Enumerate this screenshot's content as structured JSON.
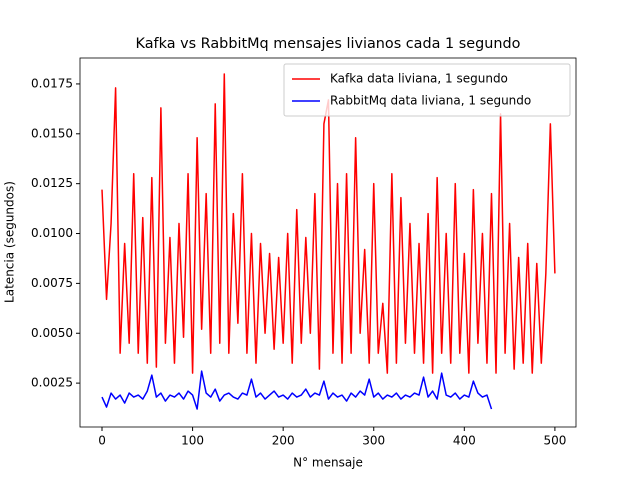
{
  "chart_data": {
    "type": "line",
    "title": "Kafka vs RabbitMq mensajes livianos cada 1 segundo",
    "x_label": "N° mensaje",
    "y_label": "Latencia (segundos)",
    "xlim": [
      -24.3,
      523.3
    ],
    "ylim": [
      0.0003,
      0.0188
    ],
    "xticks": [
      0,
      100,
      200,
      300,
      400,
      500
    ],
    "yticks": [
      0.0025,
      {
        "value": 0.005,
        "label": "0.0050"
      },
      0.0075,
      {
        "value": 0.01,
        "label": "0.0100"
      },
      0.0125,
      {
        "value": 0.015,
        "label": "0.0150"
      },
      0.0175
    ],
    "legend": "upper right",
    "series": [
      {
        "name": "Kafka data liviana, 1 segundo",
        "color": "#ff0000",
        "x": [
          0,
          5,
          10,
          15,
          20,
          25,
          30,
          35,
          40,
          45,
          50,
          55,
          60,
          65,
          70,
          75,
          80,
          85,
          90,
          95,
          100,
          105,
          110,
          115,
          120,
          125,
          130,
          135,
          140,
          145,
          150,
          155,
          160,
          165,
          170,
          175,
          180,
          185,
          190,
          195,
          200,
          205,
          210,
          215,
          220,
          225,
          230,
          235,
          240,
          245,
          250,
          255,
          260,
          265,
          270,
          275,
          280,
          285,
          290,
          295,
          300,
          305,
          310,
          315,
          320,
          325,
          330,
          335,
          340,
          345,
          350,
          355,
          360,
          365,
          370,
          375,
          380,
          385,
          390,
          395,
          400,
          405,
          410,
          415,
          420,
          425,
          430,
          435,
          440,
          445,
          450,
          455,
          460,
          465,
          470,
          475,
          480,
          485,
          490,
          495,
          500
        ],
        "values": [
          0.0122,
          0.0067,
          0.0105,
          0.0173,
          0.004,
          0.0095,
          0.0045,
          0.013,
          0.004,
          0.0108,
          0.0035,
          0.0128,
          0.0033,
          0.0163,
          0.0045,
          0.0098,
          0.0035,
          0.0105,
          0.0048,
          0.013,
          0.003,
          0.0148,
          0.0052,
          0.012,
          0.004,
          0.0165,
          0.0045,
          0.018,
          0.004,
          0.011,
          0.0055,
          0.013,
          0.004,
          0.01,
          0.0035,
          0.0095,
          0.005,
          0.009,
          0.0042,
          0.0088,
          0.0045,
          0.01,
          0.0035,
          0.0112,
          0.0045,
          0.0098,
          0.005,
          0.012,
          0.0032,
          0.0155,
          0.0167,
          0.004,
          0.0125,
          0.0035,
          0.013,
          0.004,
          0.0148,
          0.005,
          0.0092,
          0.0035,
          0.0125,
          0.004,
          0.0065,
          0.003,
          0.013,
          0.0035,
          0.0118,
          0.0045,
          0.0105,
          0.004,
          0.0095,
          0.0035,
          0.011,
          0.003,
          0.0128,
          0.004,
          0.01,
          0.0035,
          0.0125,
          0.004,
          0.009,
          0.003,
          0.0122,
          0.0045,
          0.01,
          0.0035,
          0.012,
          0.003,
          0.016,
          0.004,
          0.0105,
          0.0032,
          0.0088,
          0.0035,
          0.0095,
          0.003,
          0.0085,
          0.0035,
          0.008,
          0.0155,
          0.008
        ]
      },
      {
        "name": "RabbitMq data liviana, 1 segundo",
        "color": "#0000ff",
        "x": [
          0,
          5,
          10,
          15,
          20,
          25,
          30,
          35,
          40,
          45,
          50,
          55,
          60,
          65,
          70,
          75,
          80,
          85,
          90,
          95,
          100,
          105,
          110,
          115,
          120,
          125,
          130,
          135,
          140,
          145,
          150,
          155,
          160,
          165,
          170,
          175,
          180,
          185,
          190,
          195,
          200,
          205,
          210,
          215,
          220,
          225,
          230,
          235,
          240,
          245,
          250,
          255,
          260,
          265,
          270,
          275,
          280,
          285,
          290,
          295,
          300,
          305,
          310,
          315,
          320,
          325,
          330,
          335,
          340,
          345,
          350,
          355,
          360,
          365,
          370,
          375,
          380,
          385,
          390,
          395,
          400,
          405,
          410,
          415,
          420,
          425,
          430
        ],
        "values": [
          0.0018,
          0.0013,
          0.002,
          0.0017,
          0.0019,
          0.0015,
          0.002,
          0.0018,
          0.0019,
          0.0017,
          0.0021,
          0.0029,
          0.0018,
          0.002,
          0.0016,
          0.0019,
          0.0018,
          0.002,
          0.0017,
          0.0021,
          0.0019,
          0.0012,
          0.0031,
          0.002,
          0.0018,
          0.0022,
          0.0016,
          0.0019,
          0.002,
          0.0018,
          0.0017,
          0.002,
          0.0019,
          0.0027,
          0.0018,
          0.002,
          0.0017,
          0.0019,
          0.0021,
          0.0018,
          0.0019,
          0.0017,
          0.002,
          0.0018,
          0.0019,
          0.0022,
          0.0018,
          0.002,
          0.0019,
          0.0026,
          0.0017,
          0.002,
          0.0018,
          0.0019,
          0.0016,
          0.002,
          0.0018,
          0.0021,
          0.0019,
          0.0027,
          0.0018,
          0.002,
          0.0017,
          0.0019,
          0.0018,
          0.002,
          0.0017,
          0.0019,
          0.0018,
          0.002,
          0.0019,
          0.0028,
          0.0018,
          0.0021,
          0.0017,
          0.003,
          0.0019,
          0.0018,
          0.002,
          0.0017,
          0.0019,
          0.0018,
          0.0026,
          0.002,
          0.0018,
          0.0019,
          0.0012
        ]
      }
    ]
  }
}
